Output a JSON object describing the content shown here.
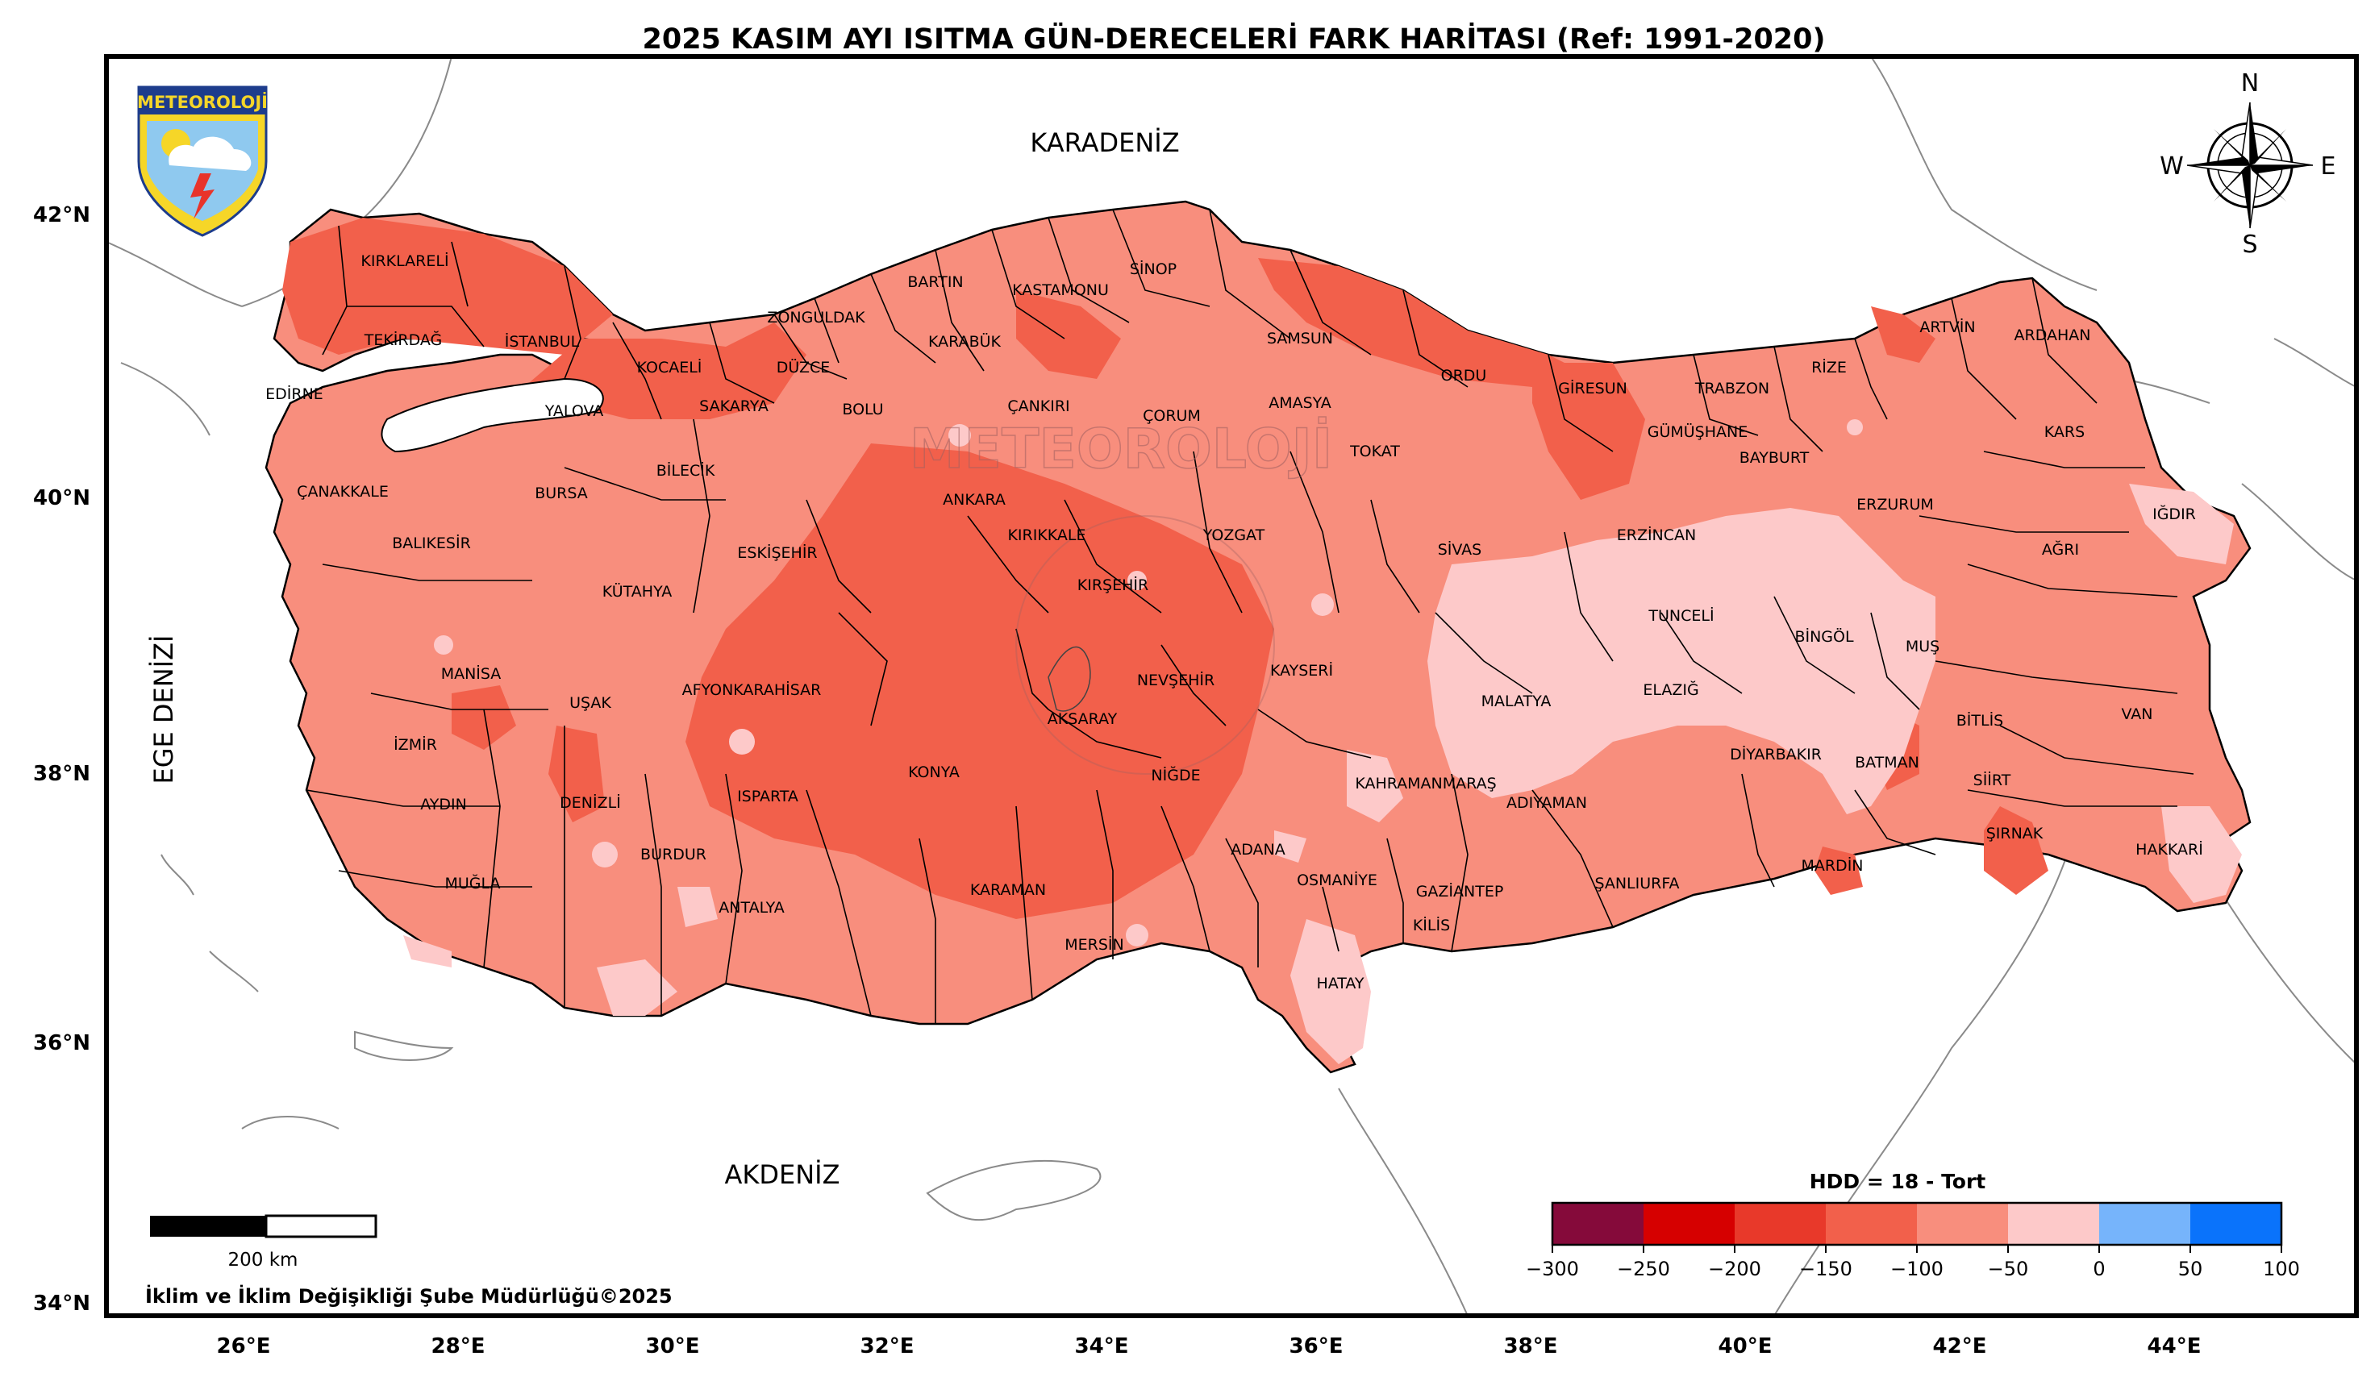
{
  "title": "2025 KASIM AYI ISITMA GÜN-DERECELERİ FARK HARİTASI (Ref: 1991-2020)",
  "logo": {
    "text": "METEOROLOJİ"
  },
  "watermark": "METEOROLOJİ",
  "seas": [
    "KARADENİZ",
    "AKDENİZ",
    "EGE DENİZİ"
  ],
  "lat_ticks": [
    "42°N",
    "40°N",
    "38°N",
    "36°N",
    "34°N"
  ],
  "lon_ticks": [
    "26°E",
    "28°E",
    "30°E",
    "32°E",
    "34°E",
    "36°E",
    "38°E",
    "40°E",
    "42°E",
    "44°E"
  ],
  "compass": {
    "n": "N",
    "s": "S",
    "e": "E",
    "w": "W"
  },
  "scale_bar": {
    "label": "200 km"
  },
  "credit": "İklim ve İklim Değişikliği Şube Müdürlüğü©2025",
  "legend": {
    "title": "HDD = 18 - Tort",
    "ticks": [
      "−300",
      "−250",
      "−200",
      "−150",
      "−100",
      "−50",
      "0",
      "50",
      "100"
    ],
    "colors": [
      "#850a3a",
      "#d60000",
      "#e8392a",
      "#f2604b",
      "#f88e7d",
      "#fdc9c9",
      "#76b4fb",
      "#0a73fb"
    ]
  },
  "provinces": [
    "KIRKLARELİ",
    "TEKİRDAĞ",
    "EDİRNE",
    "İSTANBUL",
    "KOCAELİ",
    "YALOVA",
    "SAKARYA",
    "DÜZCE",
    "ZONGULDAK",
    "BARTIN",
    "KARABÜK",
    "KASTAMONU",
    "SİNOP",
    "SAMSUN",
    "ORDU",
    "GİRESUN",
    "TRABZON",
    "RİZE",
    "ARTVİN",
    "ARDAHAN",
    "KARS",
    "IĞDIR",
    "AĞRI",
    "ERZURUM",
    "BAYBURT",
    "GÜMÜŞHANE",
    "ERZİNCAN",
    "TOKAT",
    "AMASYA",
    "ÇORUM",
    "ÇANKIRI",
    "BOLU",
    "BİLECİK",
    "BURSA",
    "ÇANAKKALE",
    "BALIKESİR",
    "KÜTAHYA",
    "ESKİŞEHİR",
    "ANKARA",
    "KIRIKKALE",
    "YOZGAT",
    "SİVAS",
    "KIRŞEHİR",
    "NEVŞEHİR",
    "KAYSERİ",
    "MALATYA",
    "TUNCELİ",
    "BİNGÖL",
    "MUŞ",
    "ELAZIĞ",
    "BİTLİS",
    "VAN",
    "HAKKARİ",
    "ŞIRNAK",
    "SİİRT",
    "BATMAN",
    "DİYARBAKIR",
    "MARDİN",
    "ŞANLIURFA",
    "ADIYAMAN",
    "KAHRAMANMARAŞ",
    "GAZİANTEP",
    "KİLİS",
    "OSMANİYE",
    "HATAY",
    "ADANA",
    "MERSİN",
    "KARAMAN",
    "NİĞDE",
    "AKSARAY",
    "KONYA",
    "ISPARTA",
    "AFYONKARAHİSAR",
    "UŞAK",
    "MANİSA",
    "İZMİR",
    "AYDIN",
    "DENİZLİ",
    "BURDUR",
    "MUĞLA",
    "ANTALYA"
  ]
}
